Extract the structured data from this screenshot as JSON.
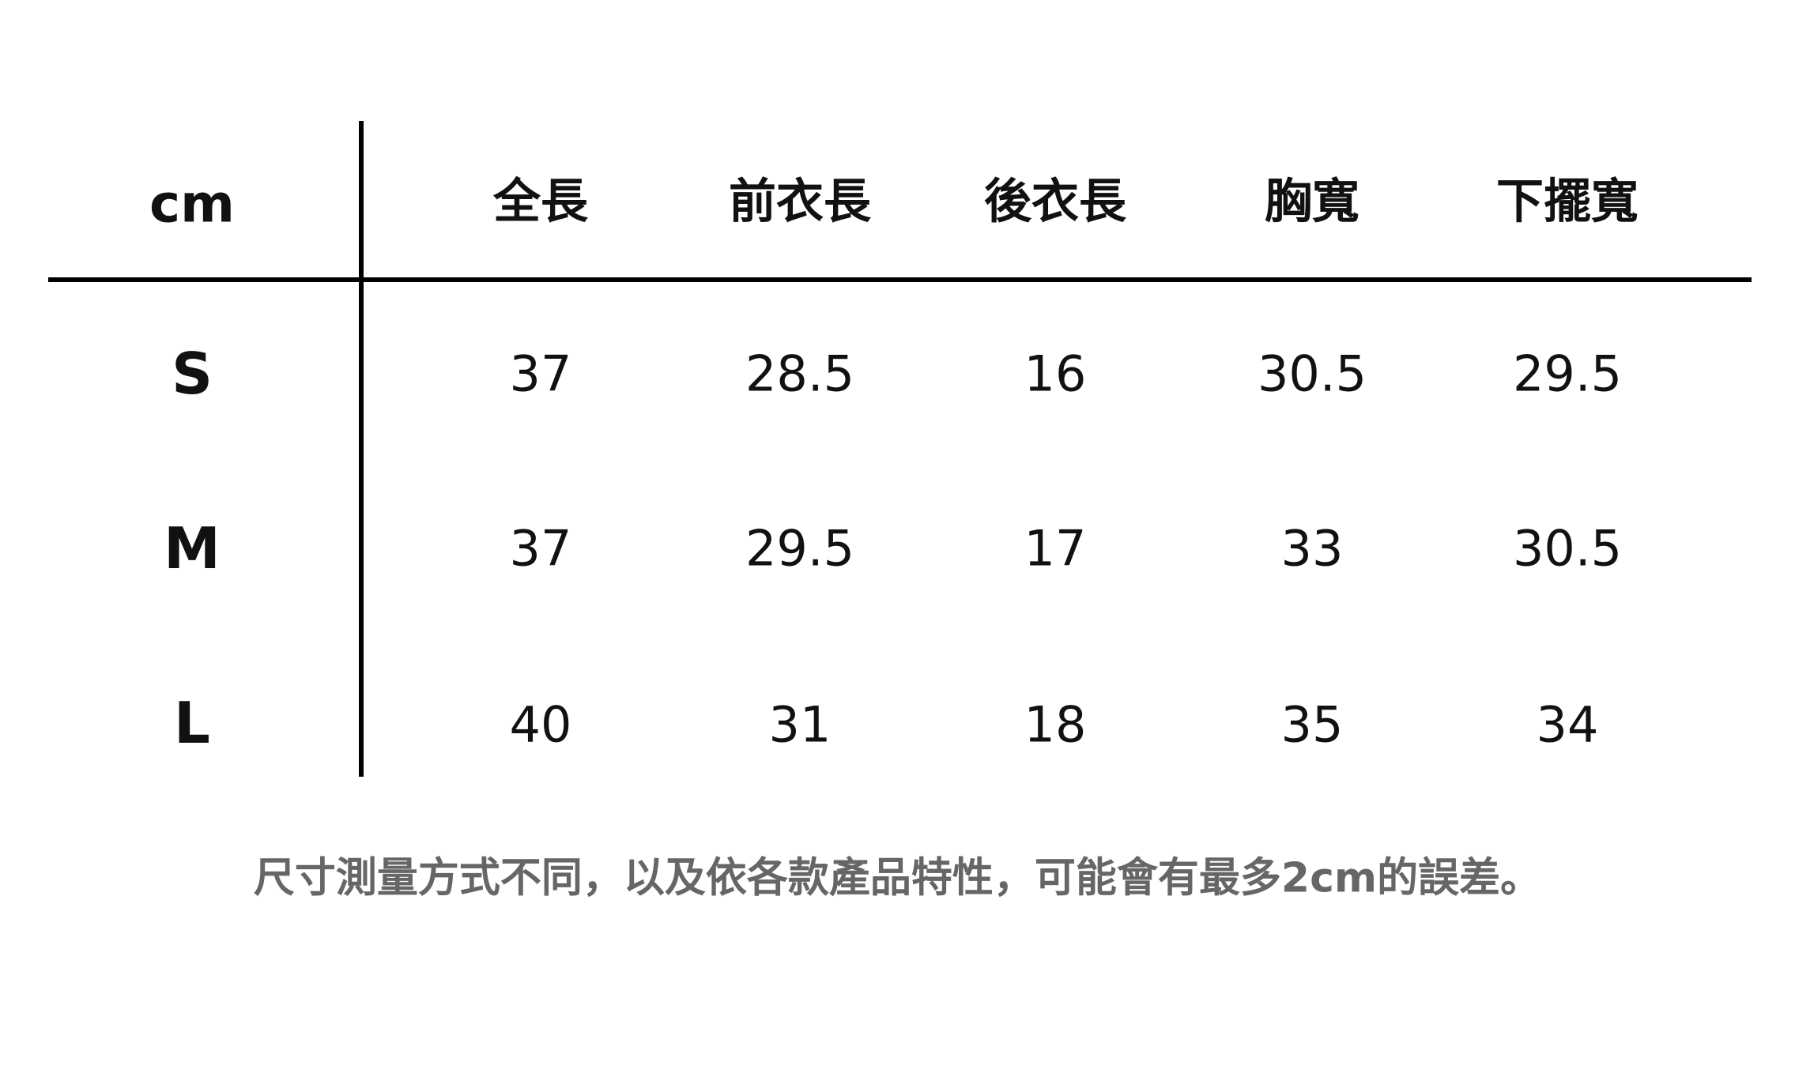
{
  "table": {
    "unit_label": "cm",
    "columns": [
      "全長",
      "前衣長",
      "後衣長",
      "胸寬",
      "下擺寬"
    ],
    "rows": [
      {
        "size": "S",
        "values": [
          "37",
          "28.5",
          "16",
          "30.5",
          "29.5"
        ]
      },
      {
        "size": "M",
        "values": [
          "37",
          "29.5",
          "17",
          "33",
          "30.5"
        ]
      },
      {
        "size": "L",
        "values": [
          "40",
          "31",
          "18",
          "35",
          "34"
        ]
      }
    ]
  },
  "note": "尺寸測量方式不同，以及依各款產品特性，可能會有最多2cm的誤差。"
}
